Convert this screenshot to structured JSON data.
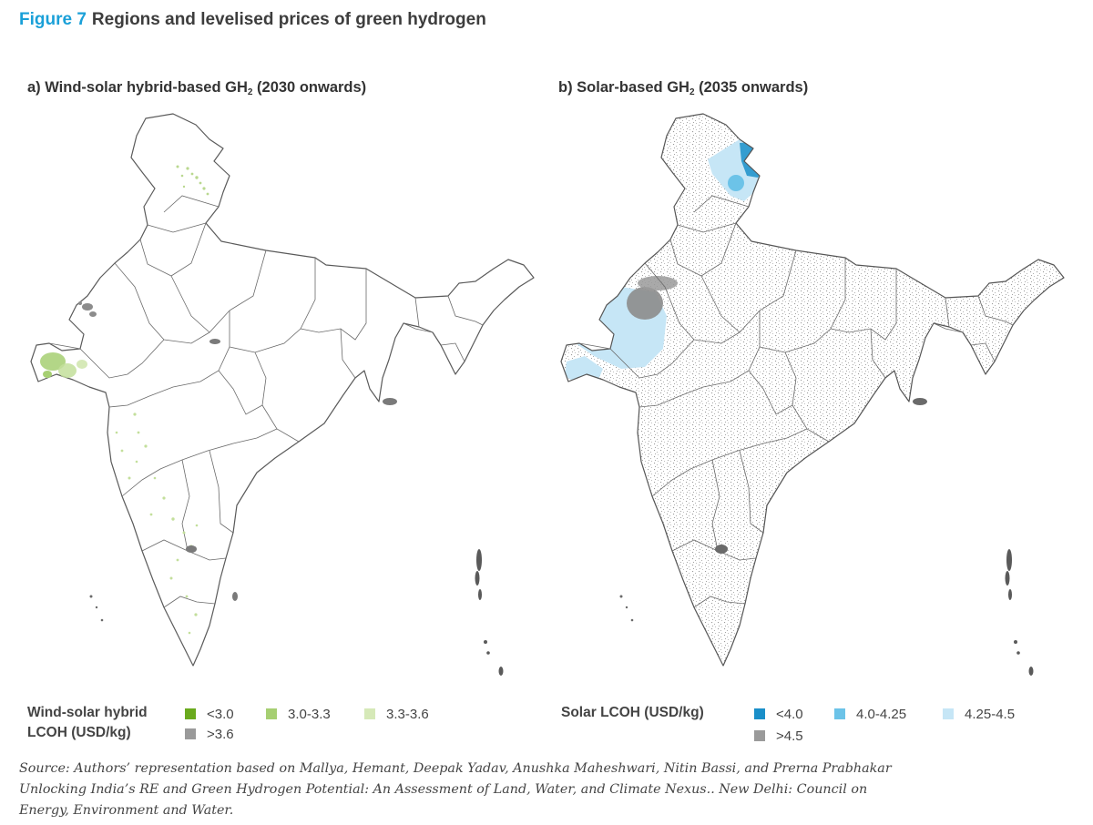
{
  "figure": {
    "number": "Figure 7",
    "title": "Regions and levelised prices of green hydrogen"
  },
  "panel_a": {
    "title_prefix": "a) Wind-solar hybrid-based GH",
    "title_sub": "2",
    "title_suffix": " (2030 onwards)",
    "legend": {
      "title_line1": "Wind-solar hybrid",
      "title_line2": "LCOH (USD/kg)",
      "items": [
        {
          "label": "<3.0",
          "color": "#6aaa1e"
        },
        {
          "label": "3.0-3.3",
          "color": "#a6cf72"
        },
        {
          "label": "3.3-3.6",
          "color": "#d6e9b8"
        },
        {
          "label": ">3.6",
          "color": "#9a9a9a"
        }
      ]
    }
  },
  "panel_b": {
    "title_prefix": "b) Solar-based GH",
    "title_sub": "2",
    "title_suffix": " (2035 onwards)",
    "legend": {
      "title": "Solar LCOH (USD/kg)",
      "items": [
        {
          "label": "<4.0",
          "color": "#1a8fc9"
        },
        {
          "label": "4.0-4.25",
          "color": "#6cc3e8"
        },
        {
          "label": "4.25-4.5",
          "color": "#c6e6f6"
        },
        {
          "label": ">4.5",
          "color": "#9a9a9a"
        }
      ]
    }
  },
  "source": "Source: Authors’ representation based on Mallya, Hemant, Deepak Yadav, Anushka Maheshwari, Nitin Bassi, and Prerna Prabhakar Unlocking India’s RE and Green Hydrogen Potential: An Assessment of Land, Water, and Climate Nexus.. New Delhi: Council on Energy, Environment and Water."
}
